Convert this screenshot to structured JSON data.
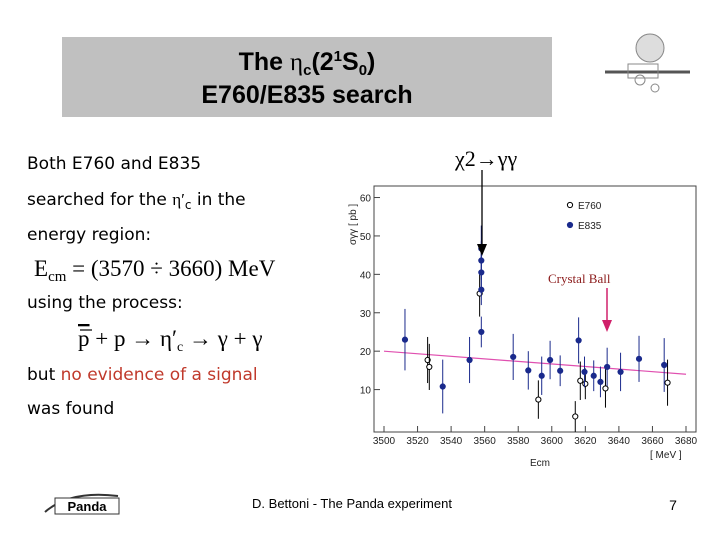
{
  "header": {
    "title": {
      "prefix": "The ",
      "eta": "η",
      "sub1": "c",
      "mid": "(2",
      "sup": "1",
      "mid2": "S",
      "sub2": "0",
      "suffix": ")",
      "line2": "E760/E835 search"
    }
  },
  "body": {
    "line1": "Both E760 and E835",
    "line2": {
      "before": "searched for the ",
      "eta": "η′",
      "sub": "c",
      "after": " in the"
    },
    "line3": "energy region:",
    "formula1": {
      "lhs": "E",
      "lhs_sub": "cm",
      "rhs": " = (3570 ÷ 3660) MeV"
    },
    "line4": "using the process:",
    "formula2": {
      "pbar": "p",
      "mid": " + p → ",
      "eta": "η′",
      "sub": "c",
      "end": " → γ + γ"
    },
    "line5": {
      "before": "but ",
      "highlight": "no evidence of a signal"
    },
    "line6": "was found"
  },
  "footer": {
    "author": "D. Bettoni - The Panda experiment",
    "page": "7",
    "logo_text": "Panda"
  },
  "chart_data": {
    "type": "scatter",
    "y_label": "σγγ [ pb ]",
    "x_label": "Ecm",
    "x_unit": "[ MeV ]",
    "annotations": {
      "chi": "χ2→γγ",
      "crystal": "Crystal Ball"
    },
    "xlim": [
      3500,
      3680
    ],
    "ylim": [
      0,
      63
    ],
    "xticks": [
      3500,
      3520,
      3540,
      3560,
      3580,
      3600,
      3620,
      3640,
      3660,
      3680
    ],
    "yticks": [
      10,
      20,
      30,
      40,
      50,
      60
    ],
    "series": [
      {
        "name": "E760",
        "color": "#000000",
        "marker": "open",
        "x": [
          3526,
          3527,
          3557,
          3592,
          3614,
          3617,
          3620,
          3632,
          3669
        ],
        "values": [
          17.7,
          15.9,
          35,
          7.4,
          3,
          12.3,
          11.5,
          10.3,
          11.8
        ],
        "errors": [
          6,
          6,
          6,
          5,
          4,
          5,
          4,
          5,
          6
        ]
      },
      {
        "name": "E835",
        "color": "#1a2a8c",
        "marker": "filled",
        "x": [
          3512.5,
          3535,
          3551,
          3558,
          3558,
          3558,
          3558,
          3558,
          3577,
          3586,
          3594,
          3599,
          3605,
          3616,
          3619.5,
          3625,
          3629,
          3633,
          3641,
          3652,
          3667
        ],
        "values": [
          23,
          10.8,
          17.7,
          25,
          46.7,
          43.6,
          40.5,
          36,
          18.5,
          15,
          13.6,
          17.7,
          14.9,
          22.8,
          14.6,
          13.6,
          12,
          15.9,
          14.6,
          18,
          16.4
        ],
        "errors": [
          8,
          7,
          6,
          4,
          6,
          5,
          5,
          4,
          6,
          5,
          5,
          5,
          4,
          6,
          4,
          4,
          4,
          5,
          5,
          6,
          7
        ]
      }
    ],
    "fit": {
      "color": "#e050b0",
      "x": [
        3500,
        3680
      ],
      "values": [
        20,
        14
      ]
    }
  }
}
